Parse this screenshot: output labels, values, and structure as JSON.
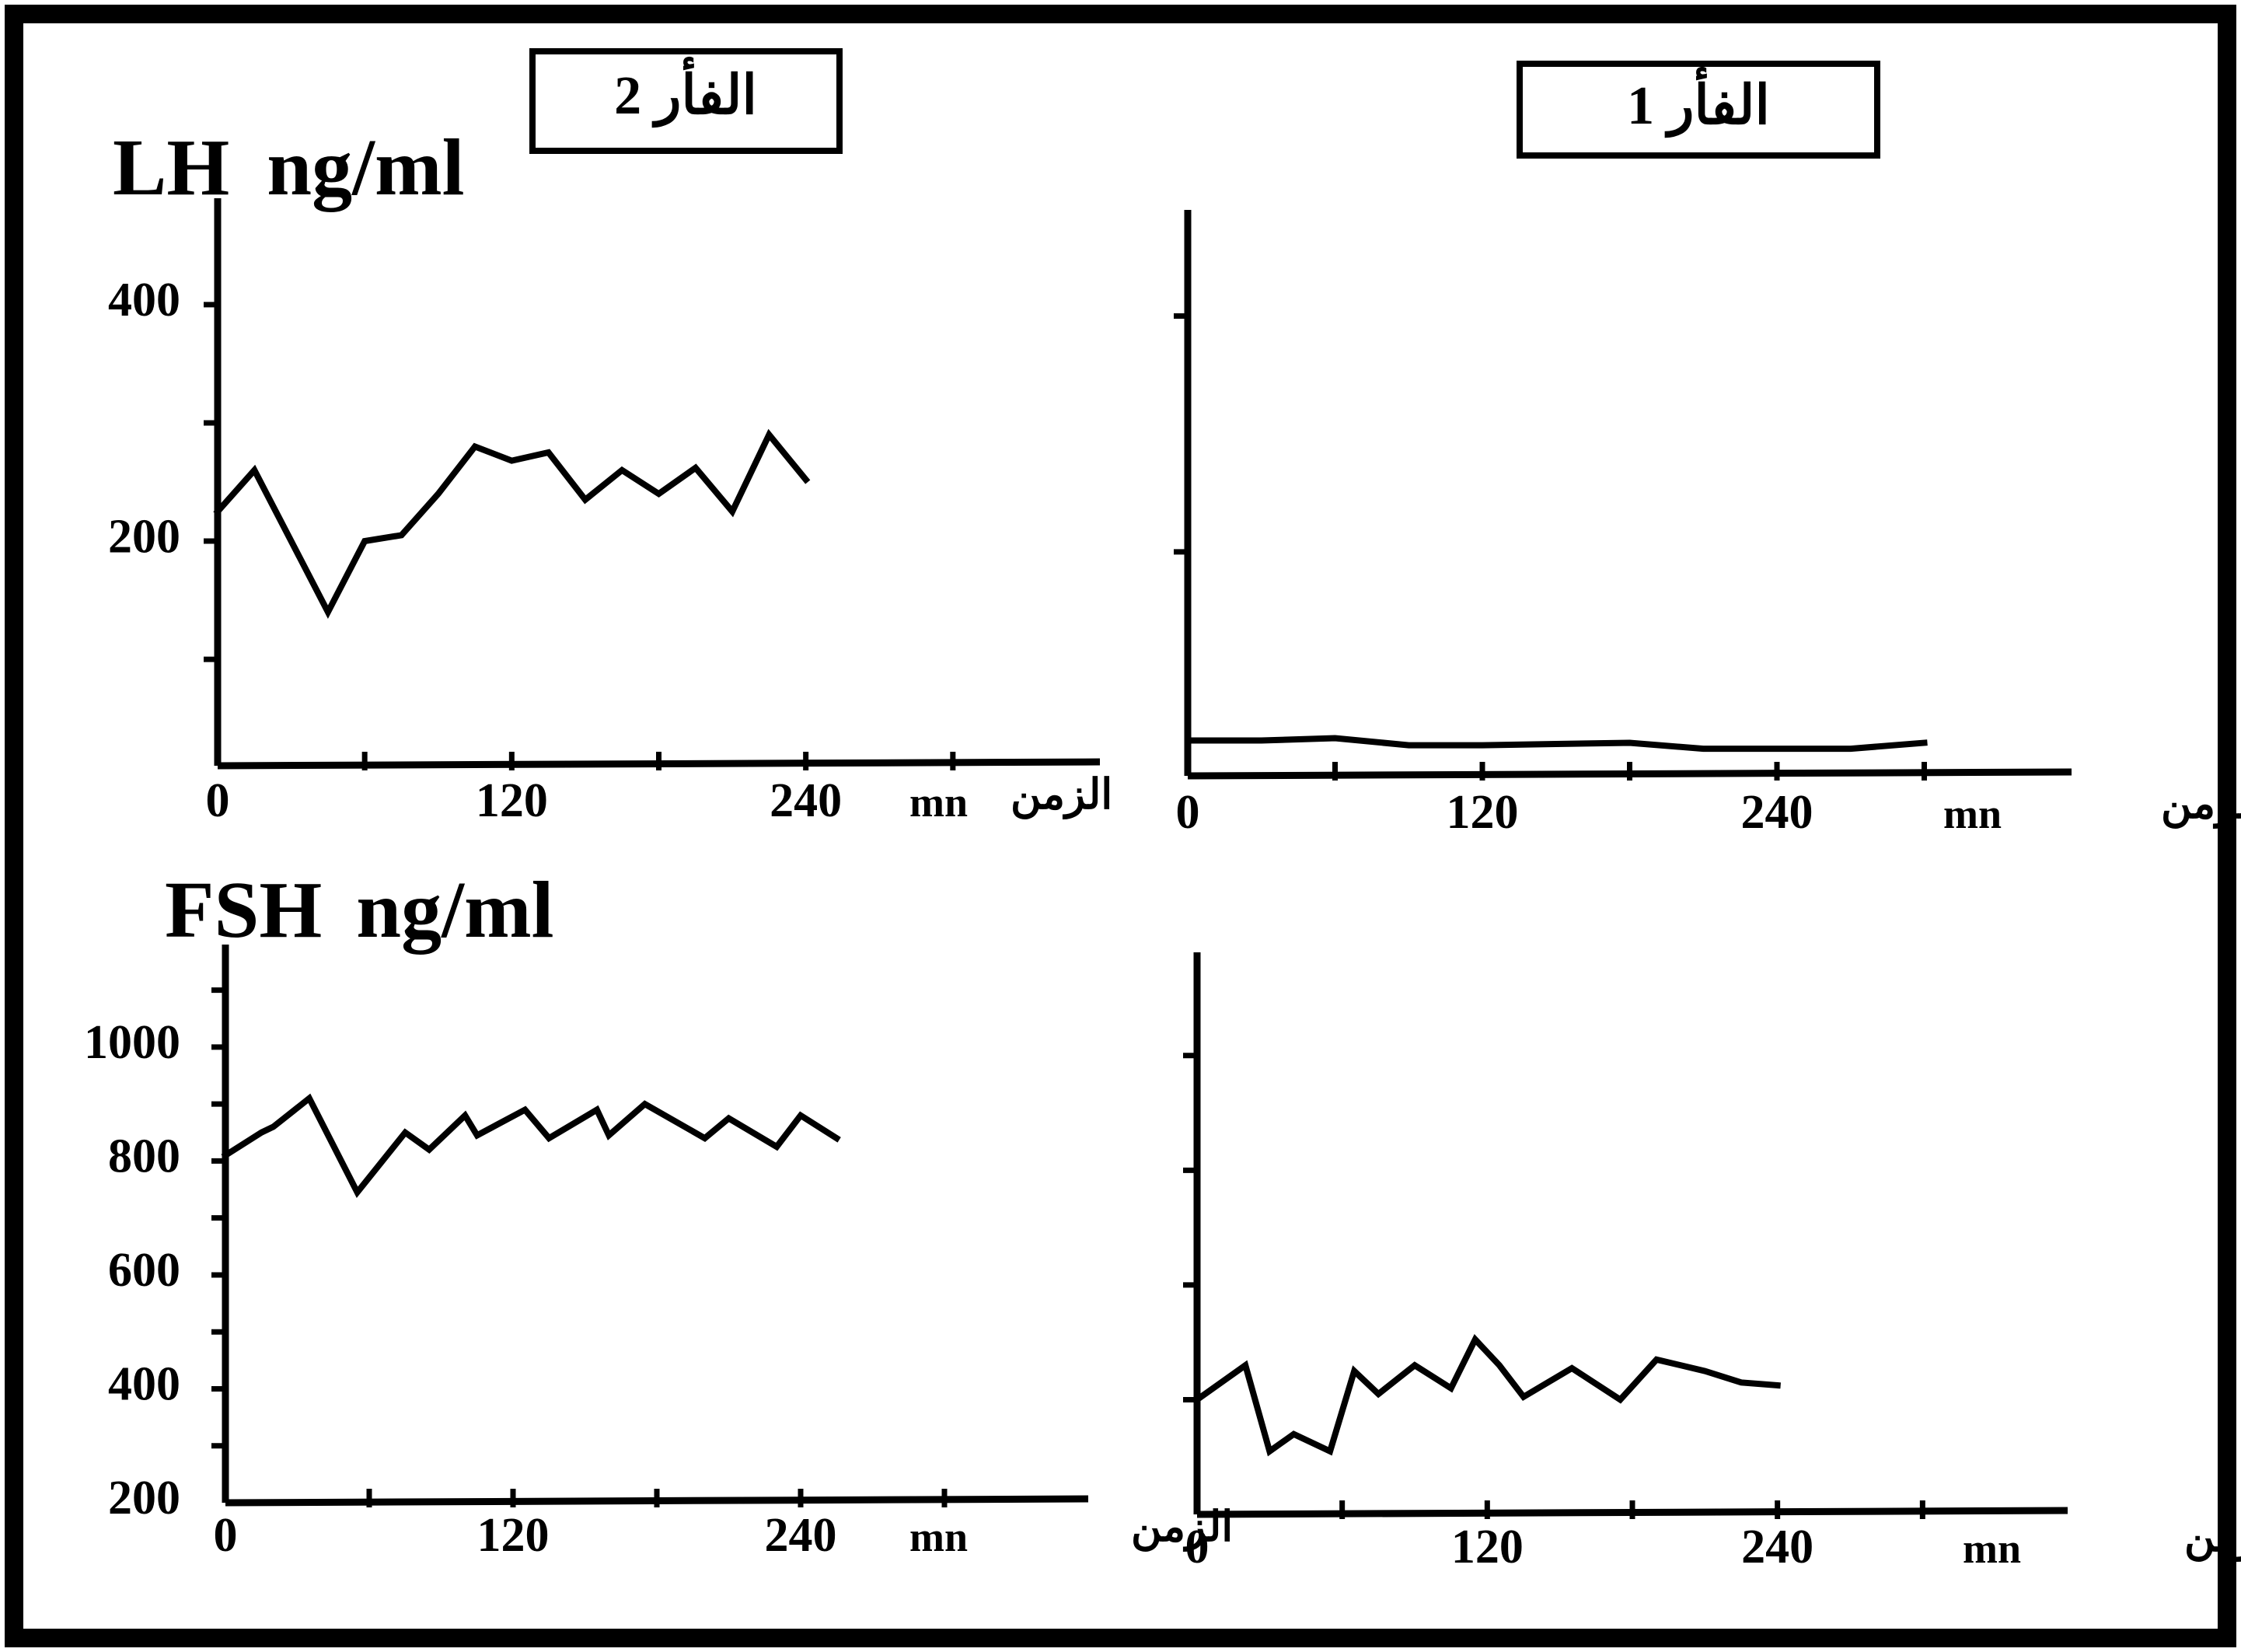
{
  "colors": {
    "background": "#ffffff",
    "ink": "#000000"
  },
  "chart_data": [
    {
      "type": "line",
      "title": "الفأر 2",
      "ylabel": "LH",
      "yunit": "ng/ml",
      "xlabel": "الزمن",
      "xunit": "mn",
      "x_ticks": [
        "0",
        "120",
        "240"
      ],
      "y_ticks": [
        "200",
        "400"
      ],
      "xlim": [
        0,
        360
      ],
      "ylim": [
        10,
        490
      ],
      "series": [
        {
          "x": [
            0,
            15,
            30,
            45,
            60,
            75,
            90,
            105,
            120,
            135,
            150,
            165,
            180,
            195,
            210,
            225,
            240
          ],
          "y": [
            225,
            260,
            200,
            140,
            200,
            205,
            240,
            280,
            268,
            275,
            235,
            260,
            240,
            262,
            225,
            290,
            252
          ]
        }
      ]
    },
    {
      "type": "line",
      "title": "الفأر 1",
      "ylabel": "LH",
      "yunit": "ng/ml",
      "xlabel": "الزمن",
      "xunit": "mn",
      "x_ticks": [
        "0",
        "120",
        "240"
      ],
      "y_ticks": [],
      "xlim": [
        0,
        360
      ],
      "ylim": [
        10,
        490
      ],
      "series": [
        {
          "x": [
            0,
            30,
            60,
            90,
            120,
            150,
            180,
            210,
            240,
            270,
            300
          ],
          "y": [
            40,
            40,
            42,
            36,
            36,
            37,
            38,
            33,
            33,
            33,
            38
          ]
        }
      ]
    },
    {
      "type": "line",
      "title": "الفأر 2",
      "ylabel": "FSH",
      "yunit": "ng/ml",
      "xlabel": "الزمن",
      "xunit": "mn",
      "x_ticks": [
        "0",
        "120",
        "240"
      ],
      "y_ticks": [
        "200",
        "400",
        "600",
        "800",
        "1000"
      ],
      "xlim": [
        0,
        360
      ],
      "ylim": [
        200,
        1180
      ],
      "series": [
        {
          "x": [
            0,
            15,
            20,
            35,
            55,
            75,
            85,
            100,
            105,
            125,
            135,
            155,
            160,
            175,
            200,
            210,
            230,
            240,
            255
          ],
          "y": [
            810,
            850,
            860,
            910,
            745,
            850,
            820,
            880,
            845,
            890,
            840,
            890,
            845,
            900,
            840,
            875,
            825,
            880,
            840
          ]
        }
      ]
    },
    {
      "type": "line",
      "title": "الفأر 1",
      "ylabel": "FSH",
      "yunit": "ng/ml",
      "xlabel": "الزمن",
      "xunit": "mn",
      "x_ticks": [
        "0",
        "120",
        "240"
      ],
      "y_ticks": [],
      "xlim": [
        0,
        360
      ],
      "ylim": [
        200,
        1180
      ],
      "series": [
        {
          "x": [
            0,
            20,
            30,
            40,
            55,
            65,
            75,
            90,
            105,
            115,
            125,
            135,
            155,
            175,
            190,
            210,
            225,
            240
          ],
          "y": [
            400,
            460,
            310,
            340,
            310,
            450,
            410,
            460,
            420,
            505,
            460,
            405,
            455,
            400,
            470,
            450,
            430,
            425
          ]
        }
      ]
    }
  ]
}
